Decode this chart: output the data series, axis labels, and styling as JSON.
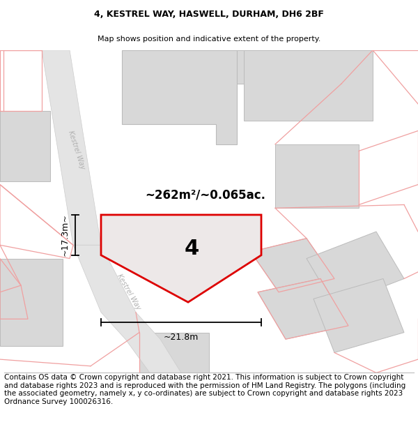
{
  "title": "4, KESTREL WAY, HASWELL, DURHAM, DH6 2BF",
  "subtitle": "Map shows position and indicative extent of the property.",
  "footer": "Contains OS data © Crown copyright and database right 2021. This information is subject to Crown copyright and database rights 2023 and is reproduced with the permission of HM Land Registry. The polygons (including the associated geometry, namely x, y co-ordinates) are subject to Crown copyright and database rights 2023 Ordnance Survey 100026316.",
  "title_fontsize": 9,
  "subtitle_fontsize": 8,
  "footer_fontsize": 7.5,
  "map_bg": "#f2f2f2",
  "building_color": "#d8d8d8",
  "building_edge": "#bbbbbb",
  "road_color": "#e4e4e4",
  "pink": "#f0a0a0",
  "red": "#dd0000",
  "prop_fill": "#ede8e8"
}
